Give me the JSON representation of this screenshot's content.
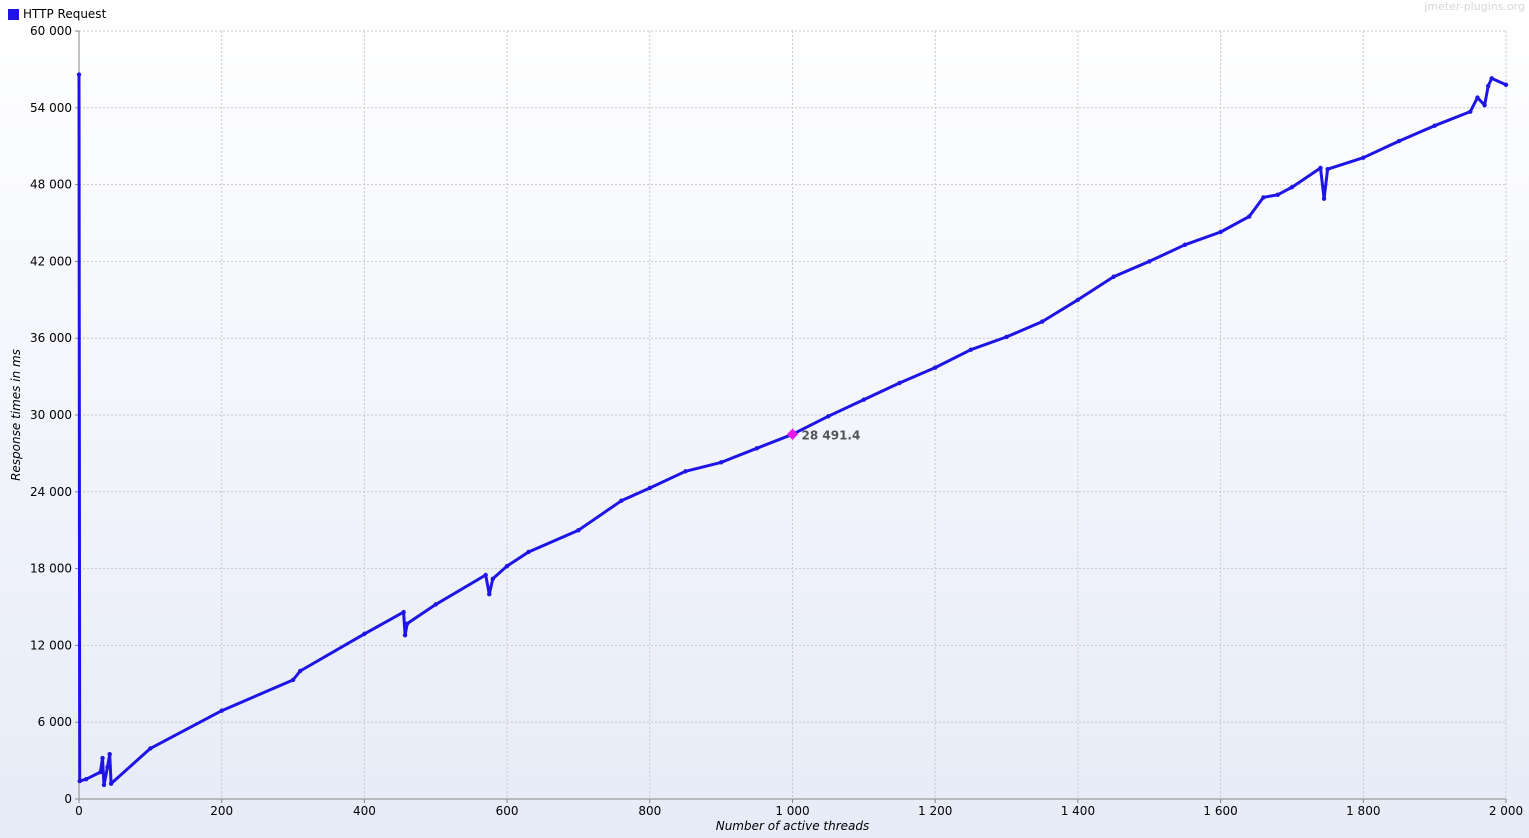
{
  "legend": {
    "label": "HTTP Request"
  },
  "watermark": "jmeter-plugins.org",
  "colors": {
    "series": "#1e14e6",
    "highlight": "#e619e6",
    "grid": "#c8c8c8"
  },
  "chart_data": {
    "type": "line",
    "title": "",
    "xlabel": "Number of active threads",
    "ylabel": "Response times in ms",
    "xlim": [
      0,
      2000
    ],
    "ylim": [
      0,
      60000
    ],
    "x_ticks": [
      0,
      200,
      400,
      600,
      800,
      1000,
      1200,
      1400,
      1600,
      1800,
      2000
    ],
    "x_tick_labels": [
      "0",
      "200",
      "400",
      "600",
      "800",
      "1 000",
      "1 200",
      "1 400",
      "1 600",
      "1 800",
      "2 000"
    ],
    "y_ticks": [
      0,
      6000,
      12000,
      18000,
      24000,
      30000,
      36000,
      42000,
      48000,
      54000,
      60000
    ],
    "y_tick_labels": [
      "0",
      "6 000",
      "12 000",
      "18 000",
      "24 000",
      "30 000",
      "36 000",
      "42 000",
      "48 000",
      "54 000",
      "60 000"
    ],
    "grid": true,
    "legend_position": "top-left",
    "series": [
      {
        "name": "HTTP Request",
        "x": [
          0,
          1,
          10,
          30,
          33,
          35,
          40,
          43,
          45,
          100,
          200,
          300,
          310,
          400,
          455,
          457,
          460,
          500,
          570,
          575,
          580,
          600,
          630,
          700,
          760,
          800,
          850,
          900,
          950,
          1000,
          1050,
          1100,
          1150,
          1200,
          1250,
          1300,
          1350,
          1400,
          1450,
          1500,
          1550,
          1600,
          1640,
          1660,
          1680,
          1700,
          1740,
          1745,
          1750,
          1800,
          1850,
          1900,
          1950,
          1960,
          1970,
          1975,
          1980,
          2000
        ],
        "y": [
          56600,
          1400,
          1550,
          2100,
          3200,
          1100,
          2500,
          3500,
          1200,
          3950,
          6900,
          9300,
          10000,
          12900,
          14600,
          12800,
          13700,
          15200,
          17500,
          16000,
          17200,
          18200,
          19300,
          21000,
          23300,
          24300,
          25600,
          26300,
          27400,
          28491.4,
          29900,
          31200,
          32500,
          33700,
          35100,
          36100,
          37300,
          39000,
          40800,
          42000,
          43300,
          44300,
          45500,
          47000,
          47200,
          47800,
          49300,
          46900,
          49200,
          50100,
          51400,
          52600,
          53700,
          54800,
          54200,
          55700,
          56300,
          55800
        ]
      }
    ],
    "highlight": {
      "x": 1000,
      "y": 28491.4,
      "label": "28 491.4"
    }
  }
}
